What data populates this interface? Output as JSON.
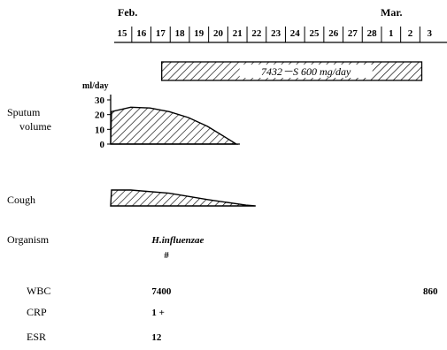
{
  "chart_data": {
    "type": "area",
    "months": [
      {
        "label": "Feb.",
        "start_day": 15
      },
      {
        "label": "Mar.",
        "start_day": 1
      }
    ],
    "days": [
      "15",
      "16",
      "17",
      "18",
      "19",
      "20",
      "21",
      "22",
      "23",
      "24",
      "25",
      "26",
      "27",
      "28",
      "1",
      "2",
      "3"
    ],
    "treatment": {
      "label": "7432－S 600 mg/day",
      "start": "Feb 16",
      "end": "Mar 2"
    },
    "sputum": {
      "label_line1": "Sputum",
      "label_line2": "volume",
      "unit": "ml/day",
      "ylim": [
        0,
        30
      ],
      "ticks": [
        "0",
        "10",
        "20",
        "30"
      ],
      "points": [
        {
          "x": "Feb 15",
          "y": 22
        },
        {
          "x": "Feb 16",
          "y": 25
        },
        {
          "x": "Feb 17",
          "y": 24.5
        },
        {
          "x": "Feb 18",
          "y": 22
        },
        {
          "x": "Feb 19",
          "y": 18
        },
        {
          "x": "Feb 20",
          "y": 12
        },
        {
          "x": "Feb 21",
          "y": 4
        },
        {
          "x": "Feb 21.5",
          "y": 0
        }
      ]
    },
    "cough": {
      "label": "Cough",
      "points": [
        {
          "x": "Feb 15",
          "y": 1.0
        },
        {
          "x": "Feb 16",
          "y": 1.0
        },
        {
          "x": "Feb 18",
          "y": 0.8
        },
        {
          "x": "Feb 20",
          "y": 0.4
        },
        {
          "x": "Feb 22",
          "y": 0.05
        },
        {
          "x": "Feb 22.5",
          "y": 0
        }
      ]
    },
    "rows": [
      {
        "label": "Organism",
        "values": [
          {
            "day": "Feb 17",
            "text": "H.influenzae",
            "italic": true
          },
          {
            "day": "Feb 17",
            "text": "#",
            "italic": false,
            "sub": true
          }
        ]
      },
      {
        "label": "WBC",
        "values": [
          {
            "day": "Feb 17",
            "text": "7400"
          },
          {
            "day": "Mar 3",
            "text": "860"
          }
        ]
      },
      {
        "label": "CRP",
        "values": [
          {
            "day": "Feb 17",
            "text": "1 +"
          }
        ]
      },
      {
        "label": "ESR",
        "values": [
          {
            "day": "Feb 17",
            "text": "12"
          }
        ]
      }
    ]
  }
}
